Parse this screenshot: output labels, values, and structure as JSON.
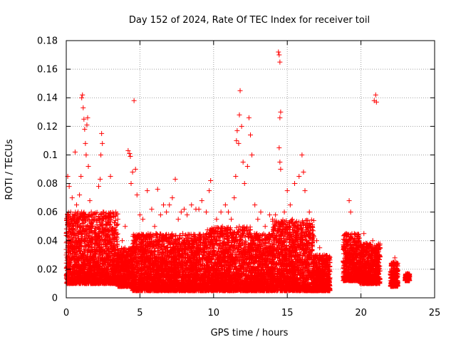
{
  "chart_data": {
    "type": "scatter",
    "title": "Day 152 of 2024, Rate Of TEC Index for receiver toil",
    "xlabel": "GPS time / hours",
    "ylabel": "ROTI / TECUs",
    "xlim": [
      0,
      25
    ],
    "ylim": [
      0,
      0.18
    ],
    "xticks": [
      "0",
      "5",
      "10",
      "15",
      "20",
      "25"
    ],
    "yticks": [
      "0",
      "0.02",
      "0.04",
      "0.06",
      "0.08",
      "0.1",
      "0.12",
      "0.14",
      "0.16",
      "0.18"
    ],
    "xtick_values": [
      0,
      5,
      10,
      15,
      20,
      25
    ],
    "ytick_values": [
      0,
      0.02,
      0.04,
      0.06,
      0.08,
      0.1,
      0.12,
      0.14,
      0.16,
      0.18
    ],
    "grid": true,
    "marker": "+",
    "color": "#ff0000",
    "series": [
      {
        "name": "ROTI",
        "points": [
          [
            0.1,
            0.085
          ],
          [
            0.2,
            0.078
          ],
          [
            0.3,
            0.06
          ],
          [
            0.4,
            0.07
          ],
          [
            0.5,
            0.05
          ],
          [
            0.6,
            0.102
          ],
          [
            0.7,
            0.065
          ],
          [
            0.8,
            0.06
          ],
          [
            0.9,
            0.072
          ],
          [
            1.0,
            0.085
          ],
          [
            1.05,
            0.14
          ],
          [
            1.1,
            0.142
          ],
          [
            1.15,
            0.133
          ],
          [
            1.2,
            0.125
          ],
          [
            1.25,
            0.118
          ],
          [
            1.3,
            0.108
          ],
          [
            1.35,
            0.1
          ],
          [
            1.4,
            0.121
          ],
          [
            1.45,
            0.126
          ],
          [
            1.5,
            0.092
          ],
          [
            1.6,
            0.068
          ],
          [
            1.7,
            0.06
          ],
          [
            1.8,
            0.05
          ],
          [
            1.9,
            0.055
          ],
          [
            2.0,
            0.045
          ],
          [
            2.2,
            0.078
          ],
          [
            2.3,
            0.083
          ],
          [
            2.35,
            0.1
          ],
          [
            2.4,
            0.115
          ],
          [
            2.45,
            0.108
          ],
          [
            2.5,
            0.06
          ],
          [
            2.7,
            0.055
          ],
          [
            2.9,
            0.04
          ],
          [
            3.0,
            0.085
          ],
          [
            3.2,
            0.045
          ],
          [
            3.5,
            0.055
          ],
          [
            3.8,
            0.04
          ],
          [
            4.0,
            0.05
          ],
          [
            4.2,
            0.103
          ],
          [
            4.3,
            0.101
          ],
          [
            4.35,
            0.099
          ],
          [
            4.4,
            0.08
          ],
          [
            4.5,
            0.088
          ],
          [
            4.6,
            0.138
          ],
          [
            4.7,
            0.09
          ],
          [
            4.8,
            0.072
          ],
          [
            5.0,
            0.058
          ],
          [
            5.2,
            0.055
          ],
          [
            5.5,
            0.075
          ],
          [
            5.8,
            0.062
          ],
          [
            6.0,
            0.05
          ],
          [
            6.2,
            0.076
          ],
          [
            6.4,
            0.058
          ],
          [
            6.6,
            0.065
          ],
          [
            6.8,
            0.06
          ],
          [
            7.0,
            0.065
          ],
          [
            7.2,
            0.07
          ],
          [
            7.4,
            0.083
          ],
          [
            7.6,
            0.055
          ],
          [
            7.8,
            0.06
          ],
          [
            8.0,
            0.062
          ],
          [
            8.2,
            0.058
          ],
          [
            8.5,
            0.065
          ],
          [
            8.8,
            0.062
          ],
          [
            9.0,
            0.062
          ],
          [
            9.2,
            0.068
          ],
          [
            9.5,
            0.06
          ],
          [
            9.7,
            0.075
          ],
          [
            9.8,
            0.082
          ],
          [
            10.0,
            0.045
          ],
          [
            10.2,
            0.055
          ],
          [
            10.5,
            0.06
          ],
          [
            10.8,
            0.065
          ],
          [
            11.0,
            0.06
          ],
          [
            11.2,
            0.055
          ],
          [
            11.4,
            0.07
          ],
          [
            11.5,
            0.085
          ],
          [
            11.55,
            0.11
          ],
          [
            11.6,
            0.117
          ],
          [
            11.7,
            0.108
          ],
          [
            11.75,
            0.128
          ],
          [
            11.8,
            0.145
          ],
          [
            11.9,
            0.12
          ],
          [
            12.0,
            0.095
          ],
          [
            12.1,
            0.08
          ],
          [
            12.3,
            0.092
          ],
          [
            12.4,
            0.126
          ],
          [
            12.5,
            0.114
          ],
          [
            12.6,
            0.1
          ],
          [
            12.8,
            0.065
          ],
          [
            13.0,
            0.055
          ],
          [
            13.2,
            0.06
          ],
          [
            13.5,
            0.05
          ],
          [
            13.8,
            0.058
          ],
          [
            14.0,
            0.055
          ],
          [
            14.2,
            0.058
          ],
          [
            14.4,
            0.172
          ],
          [
            14.45,
            0.17
          ],
          [
            14.5,
            0.165
          ],
          [
            14.55,
            0.13
          ],
          [
            14.5,
            0.126
          ],
          [
            14.45,
            0.105
          ],
          [
            14.5,
            0.095
          ],
          [
            14.55,
            0.09
          ],
          [
            14.8,
            0.06
          ],
          [
            15.0,
            0.075
          ],
          [
            15.2,
            0.065
          ],
          [
            15.5,
            0.08
          ],
          [
            15.8,
            0.085
          ],
          [
            16.0,
            0.1
          ],
          [
            16.1,
            0.088
          ],
          [
            16.2,
            0.075
          ],
          [
            16.5,
            0.06
          ],
          [
            16.7,
            0.05
          ],
          [
            17.0,
            0.04
          ],
          [
            17.2,
            0.035
          ],
          [
            17.5,
            0.03
          ],
          [
            17.8,
            0.02
          ],
          [
            19.0,
            0.045
          ],
          [
            19.2,
            0.068
          ],
          [
            19.3,
            0.06
          ],
          [
            19.5,
            0.04
          ],
          [
            19.7,
            0.035
          ],
          [
            19.9,
            0.03
          ],
          [
            20.2,
            0.045
          ],
          [
            20.5,
            0.035
          ],
          [
            20.8,
            0.04
          ],
          [
            20.9,
            0.138
          ],
          [
            21.0,
            0.142
          ],
          [
            21.05,
            0.137
          ],
          [
            21.1,
            0.03
          ],
          [
            22.2,
            0.025
          ],
          [
            22.3,
            0.028
          ],
          [
            22.4,
            0.015
          ],
          [
            23.1,
            0.015
          ],
          [
            23.2,
            0.017
          ]
        ]
      }
    ],
    "dense_band": {
      "description_free": true,
      "segments": [
        [
          0.0,
          3.5,
          0.01,
          0.06
        ],
        [
          3.5,
          4.5,
          0.008,
          0.035
        ],
        [
          4.5,
          9.5,
          0.005,
          0.045
        ],
        [
          9.5,
          12.5,
          0.005,
          0.05
        ],
        [
          12.5,
          14.0,
          0.005,
          0.045
        ],
        [
          14.0,
          16.8,
          0.005,
          0.055
        ],
        [
          16.8,
          17.9,
          0.005,
          0.03
        ],
        [
          18.8,
          19.9,
          0.012,
          0.045
        ],
        [
          19.9,
          21.3,
          0.01,
          0.038
        ],
        [
          22.0,
          22.5,
          0.008,
          0.025
        ],
        [
          23.0,
          23.3,
          0.012,
          0.017
        ]
      ]
    }
  }
}
